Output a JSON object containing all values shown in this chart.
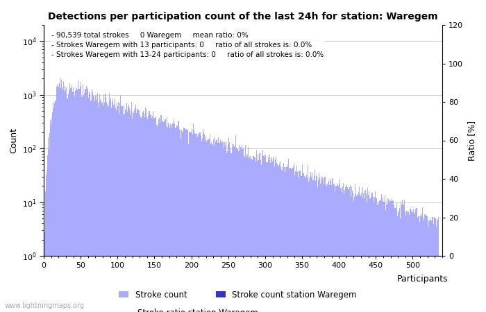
{
  "title": "Detections per participation count of the last 24h for station: Waregem",
  "annotation_lines": [
    "90,539 total strokes     0 Waregem     mean ratio: 0%",
    "Strokes Waregem with 13 participants: 0     ratio of all strokes is: 0.0%",
    "Strokes Waregem with 13-24 participants: 0     ratio of all strokes is: 0.0%"
  ],
  "xlabel": "Participants",
  "ylabel_left": "Count",
  "ylabel_right": "Ratio [%]",
  "xlim": [
    0,
    540
  ],
  "ylim_right": [
    0,
    120
  ],
  "bar_color_main": "#aaaaff",
  "bar_color_station": "#3333cc",
  "ratio_line_color": "#ff88ff",
  "background_color": "#ffffff",
  "grid_color": "#cccccc",
  "watermark": "www.lightningmaps.org",
  "legend_labels": [
    "Stroke count",
    "Stroke count station Waregem",
    "Stroke ratio station Waregem"
  ],
  "xticks": [
    0,
    50,
    100,
    150,
    200,
    250,
    300,
    350,
    400,
    450,
    500
  ],
  "yticks_right": [
    0,
    20,
    40,
    60,
    80,
    100,
    120
  ]
}
